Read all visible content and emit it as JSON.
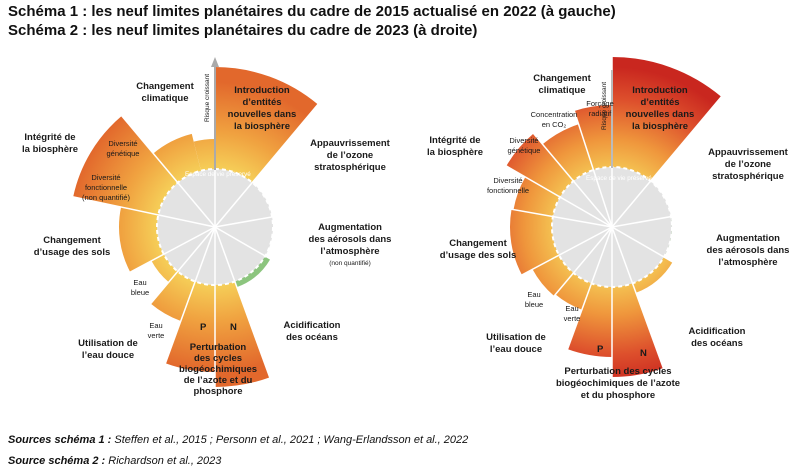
{
  "titles": {
    "schema1": "Schéma 1 : les neuf limites planétaires du cadre de 2015 actualisé en 2022 (à gauche)",
    "schema2": "Schéma 2 : les neuf limites planétaires du cadre de 2023 (à droite)"
  },
  "left": {
    "climate": [
      "Changement",
      "climatique"
    ],
    "novel": [
      "Introduction",
      "d’entités",
      "nouvelles dans",
      "la biosphère"
    ],
    "ozone": [
      "Appauvrissement",
      "de l’ozone",
      "stratosphérique"
    ],
    "aerosols": [
      "Augmentation",
      "des aérosols dans",
      "l’atmosphère"
    ],
    "aerosols_note": "(non quantifié)",
    "ocean": [
      "Acidification",
      "des océans"
    ],
    "biogeo": [
      "Perturbation",
      "des cycles",
      "biogéochimiques",
      "de l’azote et du",
      "phosphore"
    ],
    "p": "P",
    "n": "N",
    "freshwater": [
      "Utilisation de",
      "l’eau douce"
    ],
    "blue_water": [
      "Eau",
      "bleue"
    ],
    "green_water": [
      "Eau",
      "verte"
    ],
    "land": [
      "Changement",
      "d’usage des sols"
    ],
    "biosphere": [
      "Intégrité de",
      "la biosphère"
    ],
    "genetic": [
      "Diversité",
      "génétique"
    ],
    "functional": [
      "Diversité",
      "fonctionnelle",
      "(non quantifié)"
    ],
    "safe_space": "Espace de vie préservé",
    "risk": "Risque croissant"
  },
  "right": {
    "climate": [
      "Changement",
      "climatique"
    ],
    "co2": [
      "Concentration",
      "en CO₂"
    ],
    "forcing": [
      "Forçage",
      "radiatif"
    ],
    "novel": [
      "Introduction",
      "d’entités",
      "nouvelles dans",
      "la biosphère"
    ],
    "ozone": [
      "Appauvrissement",
      "de l’ozone",
      "stratosphérique"
    ],
    "aerosols": [
      "Augmentation",
      "des aérosols dans",
      "l’atmosphère"
    ],
    "ocean": [
      "Acidification",
      "des océans"
    ],
    "biogeo": [
      "Perturbation des cycles",
      "biogéochimiques de l’azote",
      "et du phosphore"
    ],
    "p": "P",
    "n": "N",
    "freshwater": [
      "Utilisation de",
      "l’eau douce"
    ],
    "blue_water": [
      "Eau",
      "bleue"
    ],
    "green_water": [
      "Eau",
      "verte"
    ],
    "land": [
      "Changement",
      "d’usage des sols"
    ],
    "biosphere": [
      "Intégrité de",
      "la biosphère"
    ],
    "genetic": [
      "Diversité",
      "génétique"
    ],
    "functional": [
      "Diversité",
      "fonctionnelle"
    ],
    "safe_space": "Espace de vie préservé",
    "risk": "Risque croissant"
  },
  "sources": {
    "s1_label": "Sources schéma 1 :",
    "s1_text": "Steffen et al., 2015 ; Personn et al., 2021 ; Wang-Erlandsson et al., 2022",
    "s2_label": "Source schéma 2 :",
    "s2_text": "Richardson et al., 2023"
  },
  "colors": {
    "safe_green": "#6fae5f",
    "globe_green": "#8cc57e",
    "zone_yellow": "#f5c64a",
    "zone_orange": "#ee8f3c",
    "zone_red": "#d73c2a",
    "grey": "#cfcfcf"
  }
}
